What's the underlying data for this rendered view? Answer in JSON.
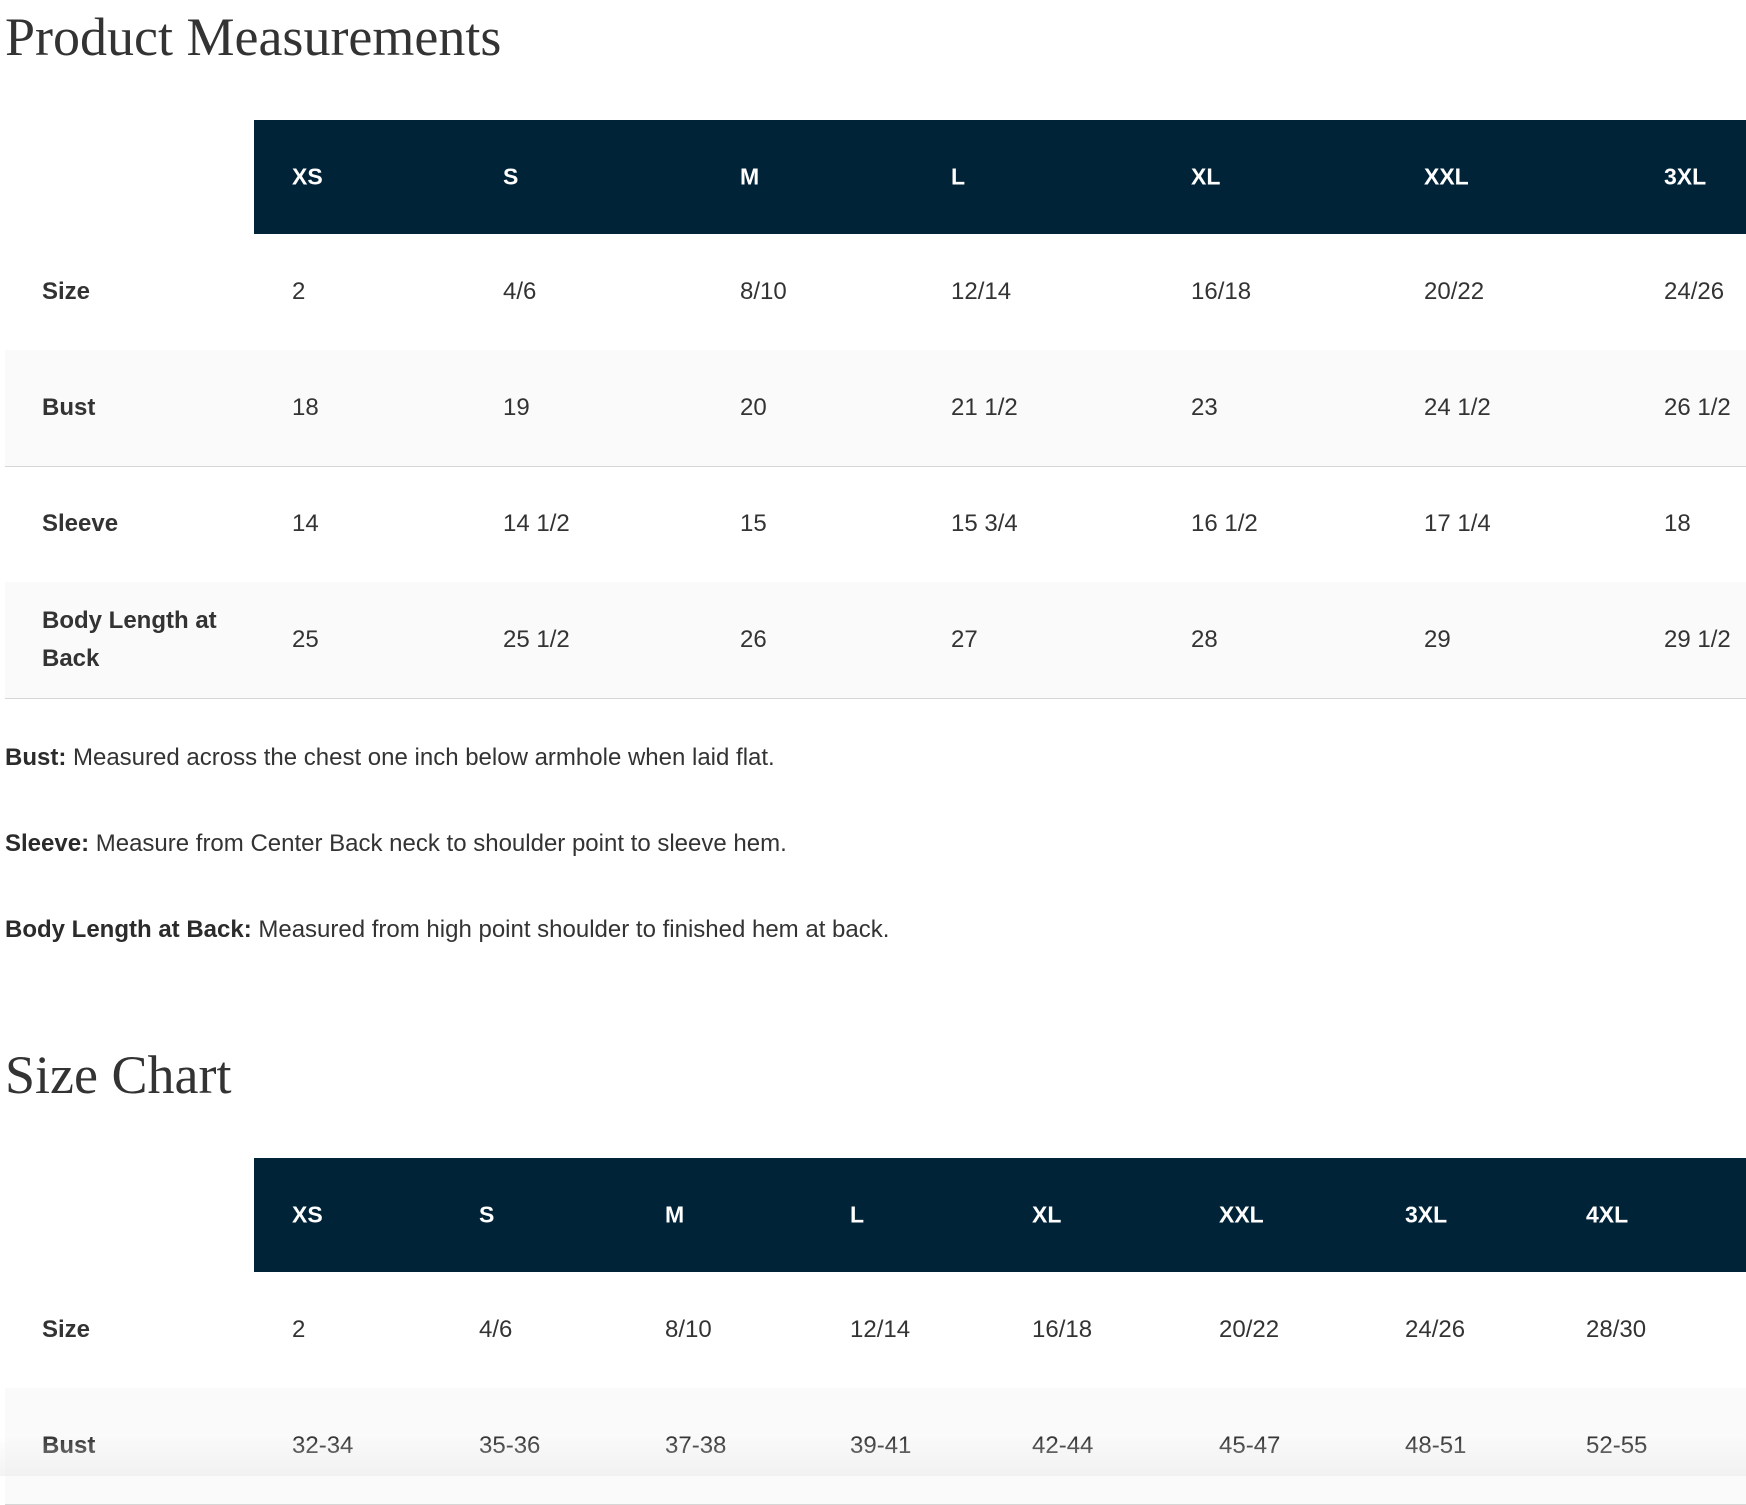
{
  "measurements": {
    "title": "Product Measurements",
    "headers": [
      "XS",
      "S",
      "M",
      "L",
      "XL",
      "XXL",
      "3XL"
    ],
    "rows": [
      {
        "label": "Size",
        "values": [
          "2",
          "4/6",
          "8/10",
          "12/14",
          "16/18",
          "20/22",
          "24/26"
        ]
      },
      {
        "label": "Bust",
        "values": [
          "18",
          "19",
          "20",
          "21 1/2",
          "23",
          "24 1/2",
          "26 1/2"
        ]
      },
      {
        "label": "Sleeve",
        "values": [
          "14",
          "14 1/2",
          "15",
          "15 3/4",
          "16 1/2",
          "17 1/4",
          "18"
        ]
      },
      {
        "label": "Body Length at Back",
        "values": [
          "25",
          "25 1/2",
          "26",
          "27",
          "28",
          "29",
          "29 1/2"
        ]
      }
    ],
    "notes": [
      {
        "term": "Bust:",
        "text": " Measured across the chest one inch below armhole when laid flat."
      },
      {
        "term": "Sleeve:",
        "text": " Measure from Center Back neck to shoulder point to sleeve hem."
      },
      {
        "term": "Body Length at Back:",
        "text": " Measured from high point shoulder to finished hem at back."
      }
    ]
  },
  "size_chart": {
    "title": "Size Chart",
    "headers": [
      "XS",
      "S",
      "M",
      "L",
      "XL",
      "XXL",
      "3XL",
      "4XL"
    ],
    "rows": [
      {
        "label": "Size",
        "values": [
          "2",
          "4/6",
          "8/10",
          "12/14",
          "16/18",
          "20/22",
          "24/26",
          "28/30"
        ]
      },
      {
        "label": "Bust",
        "values": [
          "32-34",
          "35-36",
          "37-38",
          "39-41",
          "42-44",
          "45-47",
          "48-51",
          "52-55"
        ]
      }
    ]
  },
  "colors": {
    "header_bg": "#012338",
    "header_text": "#ffffff"
  }
}
